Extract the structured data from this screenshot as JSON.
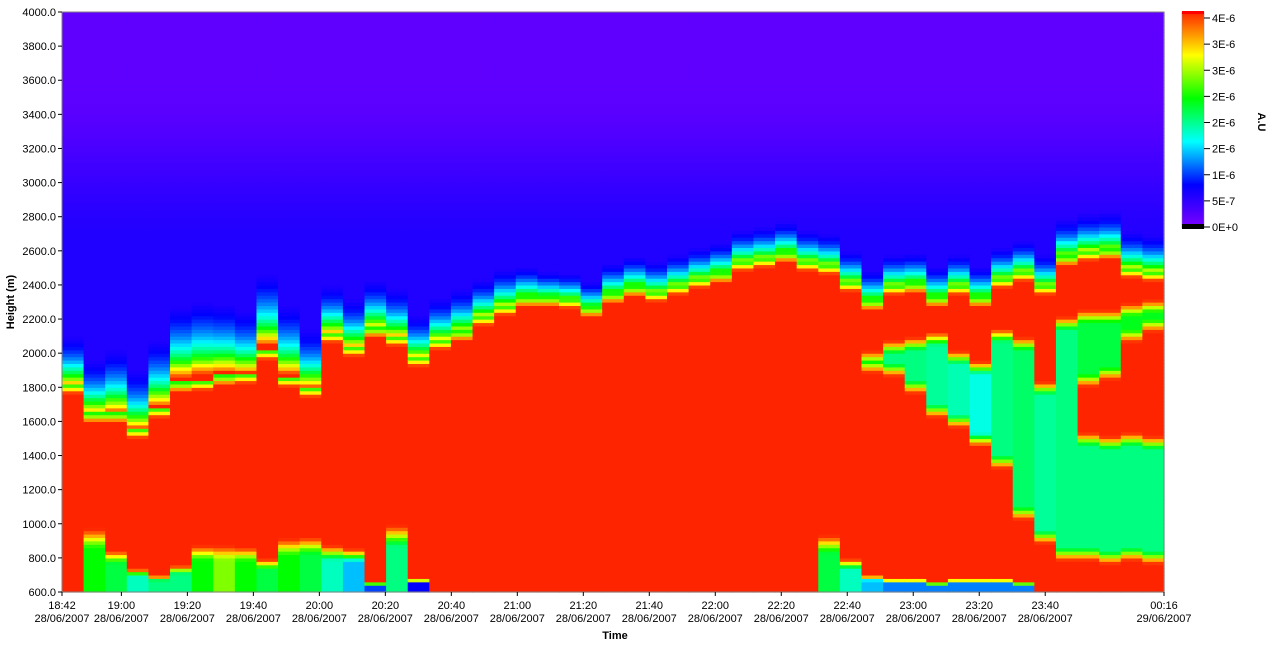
{
  "chart_data": {
    "type": "heatmap",
    "xlabel": "Time",
    "ylabel": "Height (m)",
    "ylim": [
      600,
      4000
    ],
    "y_ticks": [
      "600.0",
      "800.0",
      "1000.0",
      "1200.0",
      "1400.0",
      "1600.0",
      "1800.0",
      "2000.0",
      "2200.0",
      "2400.0",
      "2600.0",
      "2800.0",
      "3000.0",
      "3200.0",
      "3400.0",
      "3600.0",
      "3800.0",
      "4000.0"
    ],
    "x_ticks": [
      {
        "time": "18:42",
        "date": "28/06/2007"
      },
      {
        "time": "19:00",
        "date": "28/06/2007"
      },
      {
        "time": "19:20",
        "date": "28/06/2007"
      },
      {
        "time": "19:40",
        "date": "28/06/2007"
      },
      {
        "time": "20:00",
        "date": "28/06/2007"
      },
      {
        "time": "20:20",
        "date": "28/06/2007"
      },
      {
        "time": "20:40",
        "date": "28/06/2007"
      },
      {
        "time": "21:00",
        "date": "28/06/2007"
      },
      {
        "time": "21:20",
        "date": "28/06/2007"
      },
      {
        "time": "21:40",
        "date": "28/06/2007"
      },
      {
        "time": "22:00",
        "date": "28/06/2007"
      },
      {
        "time": "22:20",
        "date": "28/06/2007"
      },
      {
        "time": "22:40",
        "date": "28/06/2007"
      },
      {
        "time": "23:00",
        "date": "28/06/2007"
      },
      {
        "time": "23:20",
        "date": "28/06/2007"
      },
      {
        "time": "23:40",
        "date": "28/06/2007"
      },
      {
        "time": "00:16",
        "date": "29/06/2007"
      }
    ],
    "colorbar": {
      "label": "A.U",
      "ticks": [
        "4E-6",
        "3E-6",
        "3E-6",
        "2E-6",
        "2E-6",
        "2E-6",
        "1E-6",
        "5E-7",
        "0E+0"
      ],
      "colors": [
        "#7f00ff",
        "#0000ff",
        "#00ffff",
        "#00ff00",
        "#ffff00",
        "#ff2400"
      ]
    },
    "profiles": [
      {
        "time": "18:42",
        "aerosol_top": 1820,
        "upper_glow": 0.3,
        "lower_band": null
      },
      {
        "time": "18:48",
        "aerosol_top": 1650,
        "upper_glow": 0.35,
        "lower_band": {
          "from": 600,
          "to": 980,
          "strength": 0.6
        }
      },
      {
        "time": "18:55",
        "aerosol_top": 1650,
        "upper_glow": 0.45,
        "lower_band": {
          "from": 600,
          "to": 850,
          "strength": 0.55
        }
      },
      {
        "time": "19:02",
        "aerosol_top": 1560,
        "upper_glow": 0.4,
        "lower_band": {
          "from": 600,
          "to": 740,
          "strength": 0.45
        }
      },
      {
        "time": "19:09",
        "aerosol_top": 1680,
        "upper_glow": 0.5,
        "lower_band": {
          "from": 600,
          "to": 700,
          "strength": 0.5
        }
      },
      {
        "time": "19:15",
        "aerosol_top": 1830,
        "upper_glow": 0.6,
        "lower_band": {
          "from": 600,
          "to": 760,
          "strength": 0.5
        }
      },
      {
        "time": "19:22",
        "aerosol_top": 1840,
        "upper_glow": 0.65,
        "lower_band": {
          "from": 600,
          "to": 880,
          "strength": 0.6
        }
      },
      {
        "time": "19:29",
        "aerosol_top": 1870,
        "upper_glow": 0.55,
        "lower_band": {
          "from": 600,
          "to": 880,
          "strength": 0.7
        }
      },
      {
        "time": "19:36",
        "aerosol_top": 1880,
        "upper_glow": 0.45,
        "lower_band": {
          "from": 600,
          "to": 870,
          "strength": 0.6
        }
      },
      {
        "time": "19:42",
        "aerosol_top": 2020,
        "upper_glow": 0.6,
        "lower_band": {
          "from": 600,
          "to": 800,
          "strength": 0.55
        }
      },
      {
        "time": "19:49",
        "aerosol_top": 1860,
        "upper_glow": 0.55,
        "lower_band": {
          "from": 600,
          "to": 920,
          "strength": 0.6
        }
      },
      {
        "time": "19:56",
        "aerosol_top": 1800,
        "upper_glow": 0.4,
        "lower_band": {
          "from": 600,
          "to": 930,
          "strength": 0.55
        }
      },
      {
        "time": "20:02",
        "aerosol_top": 2120,
        "upper_glow": 0.3,
        "lower_band": {
          "from": 600,
          "to": 880,
          "strength": 0.45
        }
      },
      {
        "time": "20:09",
        "aerosol_top": 2040,
        "upper_glow": 0.3,
        "lower_band": {
          "from": 600,
          "to": 860,
          "strength": 0.35
        }
      },
      {
        "time": "20:16",
        "aerosol_top": 2150,
        "upper_glow": 0.3,
        "lower_band": {
          "from": 600,
          "to": 660,
          "strength": 0.25
        }
      },
      {
        "time": "20:22",
        "aerosol_top": 2100,
        "upper_glow": 0.3,
        "lower_band": {
          "from": 600,
          "to": 1000,
          "strength": 0.5
        }
      },
      {
        "time": "20:29",
        "aerosol_top": 1980,
        "upper_glow": 0.25,
        "lower_band": {
          "from": 600,
          "to": 680,
          "strength": 0.2
        }
      },
      {
        "time": "20:36",
        "aerosol_top": 2080,
        "upper_glow": 0.25,
        "lower_band": null
      },
      {
        "time": "20:42",
        "aerosol_top": 2130,
        "upper_glow": 0.25,
        "lower_band": null
      },
      {
        "time": "20:49",
        "aerosol_top": 2220,
        "upper_glow": 0.2,
        "lower_band": null
      },
      {
        "time": "20:56",
        "aerosol_top": 2280,
        "upper_glow": 0.2,
        "lower_band": null
      },
      {
        "time": "21:02",
        "aerosol_top": 2330,
        "upper_glow": 0.15,
        "lower_band": null
      },
      {
        "time": "21:09",
        "aerosol_top": 2330,
        "upper_glow": 0.1,
        "lower_band": null
      },
      {
        "time": "21:16",
        "aerosol_top": 2320,
        "upper_glow": 0.1,
        "lower_band": null
      },
      {
        "time": "21:22",
        "aerosol_top": 2270,
        "upper_glow": 0.1,
        "lower_band": null
      },
      {
        "time": "21:29",
        "aerosol_top": 2350,
        "upper_glow": 0.15,
        "lower_band": null
      },
      {
        "time": "21:36",
        "aerosol_top": 2390,
        "upper_glow": 0.15,
        "lower_band": null
      },
      {
        "time": "21:42",
        "aerosol_top": 2360,
        "upper_glow": 0.15,
        "lower_band": null
      },
      {
        "time": "21:49",
        "aerosol_top": 2400,
        "upper_glow": 0.15,
        "lower_band": null
      },
      {
        "time": "21:56",
        "aerosol_top": 2440,
        "upper_glow": 0.15,
        "lower_band": null
      },
      {
        "time": "22:02",
        "aerosol_top": 2470,
        "upper_glow": 0.15,
        "lower_band": null
      },
      {
        "time": "22:09",
        "aerosol_top": 2540,
        "upper_glow": 0.15,
        "lower_band": null
      },
      {
        "time": "22:16",
        "aerosol_top": 2560,
        "upper_glow": 0.15,
        "lower_band": null
      },
      {
        "time": "22:22",
        "aerosol_top": 2590,
        "upper_glow": 0.15,
        "lower_band": null
      },
      {
        "time": "22:29",
        "aerosol_top": 2540,
        "upper_glow": 0.15,
        "lower_band": null
      },
      {
        "time": "22:36",
        "aerosol_top": 2520,
        "upper_glow": 0.15,
        "lower_band": {
          "from": 600,
          "to": 940,
          "strength": 0.55
        }
      },
      {
        "time": "22:42",
        "aerosol_top": 2420,
        "upper_glow": 0.15,
        "lower_band": {
          "from": 600,
          "to": 800,
          "strength": 0.45
        }
      },
      {
        "time": "22:49",
        "aerosol_top": 2310,
        "upper_glow": 0.15,
        "lower_band": {
          "from": 600,
          "to": 700,
          "strength": 0.35
        },
        "mid_layer": {
          "from": 1880,
          "to": 2020,
          "value": 0.55
        }
      },
      {
        "time": "22:56",
        "aerosol_top": 2400,
        "upper_glow": 0.15,
        "lower_band": {
          "from": 600,
          "to": 680,
          "strength": 0.3
        },
        "mid_layer": {
          "from": 1860,
          "to": 2080,
          "value": 0.5
        }
      },
      {
        "time": "23:02",
        "aerosol_top": 2410,
        "upper_glow": 0.15,
        "lower_band": {
          "from": 600,
          "to": 680,
          "strength": 0.3
        },
        "mid_layer": {
          "from": 1760,
          "to": 2100,
          "value": 0.5
        }
      },
      {
        "time": "23:09",
        "aerosol_top": 2330,
        "upper_glow": 0.15,
        "lower_band": {
          "from": 600,
          "to": 660,
          "strength": 0.3
        },
        "mid_layer": {
          "from": 1620,
          "to": 2130,
          "value": 0.48
        }
      },
      {
        "time": "23:16",
        "aerosol_top": 2400,
        "upper_glow": 0.15,
        "lower_band": {
          "from": 600,
          "to": 680,
          "strength": 0.3
        },
        "mid_layer": {
          "from": 1560,
          "to": 2020,
          "value": 0.46
        }
      },
      {
        "time": "23:22",
        "aerosol_top": 2330,
        "upper_glow": 0.15,
        "lower_band": {
          "from": 600,
          "to": 680,
          "strength": 0.3
        },
        "mid_layer": {
          "from": 1450,
          "to": 1960,
          "value": 0.42
        }
      },
      {
        "time": "23:29",
        "aerosol_top": 2440,
        "upper_glow": 0.15,
        "lower_band": {
          "from": 600,
          "to": 680,
          "strength": 0.3
        },
        "mid_layer": {
          "from": 1320,
          "to": 2150,
          "value": 0.5
        }
      },
      {
        "time": "23:36",
        "aerosol_top": 2480,
        "upper_glow": 0.15,
        "lower_band": {
          "from": 600,
          "to": 660,
          "strength": 0.3
        },
        "mid_layer": {
          "from": 1020,
          "to": 2100,
          "value": 0.52
        }
      },
      {
        "time": "23:42",
        "aerosol_top": 2400,
        "upper_glow": 0.15,
        "lower_band": null,
        "mid_layer": {
          "from": 880,
          "to": 1840,
          "value": 0.48
        }
      },
      {
        "time": "23:49",
        "aerosol_top": 2570,
        "upper_glow": 0.2,
        "lower_band": null,
        "mid_layer": {
          "from": 780,
          "to": 2220,
          "value": 0.5
        }
      },
      {
        "time": "23:56",
        "aerosol_top": 2600,
        "upper_glow": 0.2,
        "lower_band": null,
        "mid_layer": {
          "from": 780,
          "to": 1540,
          "value": 0.5
        },
        "upper_layer": {
          "from": 1800,
          "to": 2260,
          "value": 0.55
        }
      },
      {
        "time": "00:02",
        "aerosol_top": 2610,
        "upper_glow": 0.2,
        "lower_band": null,
        "mid_layer": {
          "from": 760,
          "to": 1520,
          "value": 0.5
        },
        "upper_layer": {
          "from": 1840,
          "to": 2260,
          "value": 0.55
        }
      },
      {
        "time": "00:09",
        "aerosol_top": 2500,
        "upper_glow": 0.2,
        "lower_band": null,
        "mid_layer": {
          "from": 780,
          "to": 1540,
          "value": 0.5
        },
        "upper_layer": {
          "from": 2060,
          "to": 2300,
          "value": 0.58
        }
      },
      {
        "time": "00:16",
        "aerosol_top": 2480,
        "upper_glow": 0.2,
        "lower_band": null,
        "mid_layer": {
          "from": 760,
          "to": 1520,
          "value": 0.5
        },
        "upper_layer": {
          "from": 2120,
          "to": 2320,
          "value": 0.58
        }
      }
    ]
  }
}
